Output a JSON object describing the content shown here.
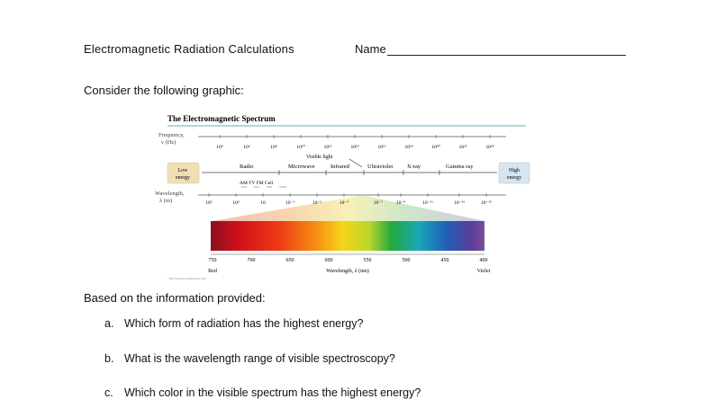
{
  "header": {
    "title": "Electromagnetic Radiation Calculations",
    "name_label": "Name"
  },
  "intro": "Consider the following graphic:",
  "figure": {
    "title": "The Electromagnetic Spectrum",
    "frequency_label_1": "Frequency,",
    "frequency_label_2": "ν (Hz)",
    "frequency_ticks": [
      "10⁴",
      "10⁶",
      "10⁸",
      "10¹⁰",
      "10¹²",
      "10¹⁴",
      "10¹⁶",
      "10¹⁸",
      "10²⁰",
      "10²²",
      "10²⁴"
    ],
    "low_energy_1": "Low",
    "low_energy_2": "energy",
    "high_energy_1": "High",
    "high_energy_2": "energy",
    "visible_light": "Visible light",
    "regions": [
      "Radio",
      "Microwave",
      "Infrared",
      "Ultraviolet",
      "X-ray",
      "Gamma ray"
    ],
    "radio_sub": "AM  TV  FM  Cell",
    "wavelength_label_1": "Wavelength,",
    "wavelength_label_2": "λ (m)",
    "wavelength_ticks": [
      "10⁵",
      "10³",
      "10",
      "10⁻¹",
      "10⁻³",
      "10⁻⁵",
      "10⁻⁷",
      "10⁻⁹",
      "10⁻¹¹",
      "10⁻¹³",
      "10⁻¹⁵"
    ],
    "visible_ticks": [
      "750",
      "700",
      "650",
      "600",
      "550",
      "500",
      "450",
      "400"
    ],
    "red_label": "Red",
    "violet_label": "Violet",
    "visible_axis_label": "Wavelength, λ (nm)",
    "copyright": "©2013 Pearson Education, Inc."
  },
  "based": "Based on the information provided:",
  "questions": [
    {
      "label": "a.",
      "text": "Which form of radiation has the highest energy?"
    },
    {
      "label": "b.",
      "text": "What is the wavelength range of visible spectroscopy?"
    },
    {
      "label": "c.",
      "text": "Which color in the visible spectrum has the highest energy?"
    }
  ]
}
